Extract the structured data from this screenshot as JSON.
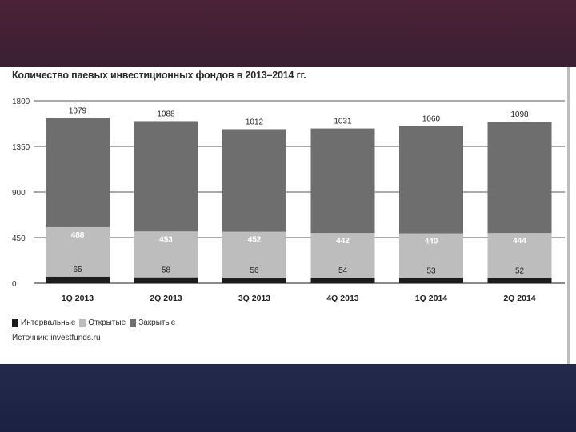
{
  "chart_data": {
    "type": "bar",
    "stacked": true,
    "title": "Количество паевых инвестиционных фондов в 2013–2014 гг.",
    "categories": [
      "1Q 2013",
      "2Q 2013",
      "3Q 2013",
      "4Q 2013",
      "1Q 2014",
      "2Q 2014"
    ],
    "series": [
      {
        "name": "Интервальные",
        "values": [
          65,
          58,
          56,
          54,
          53,
          52
        ],
        "color": "#1c1c1c"
      },
      {
        "name": "Открытые",
        "values": [
          488,
          453,
          452,
          442,
          440,
          444
        ],
        "color": "#bdbdbd"
      },
      {
        "name": "Закрытые",
        "values": [
          1079,
          1088,
          1012,
          1031,
          1060,
          1098
        ],
        "color": "#6e6e6e"
      }
    ],
    "ylim": [
      0,
      1800
    ],
    "yticks": [
      0,
      450,
      900,
      1350,
      1800
    ],
    "grid": true,
    "legend": "bottom-left",
    "source": "Источник: investfunds.ru"
  }
}
